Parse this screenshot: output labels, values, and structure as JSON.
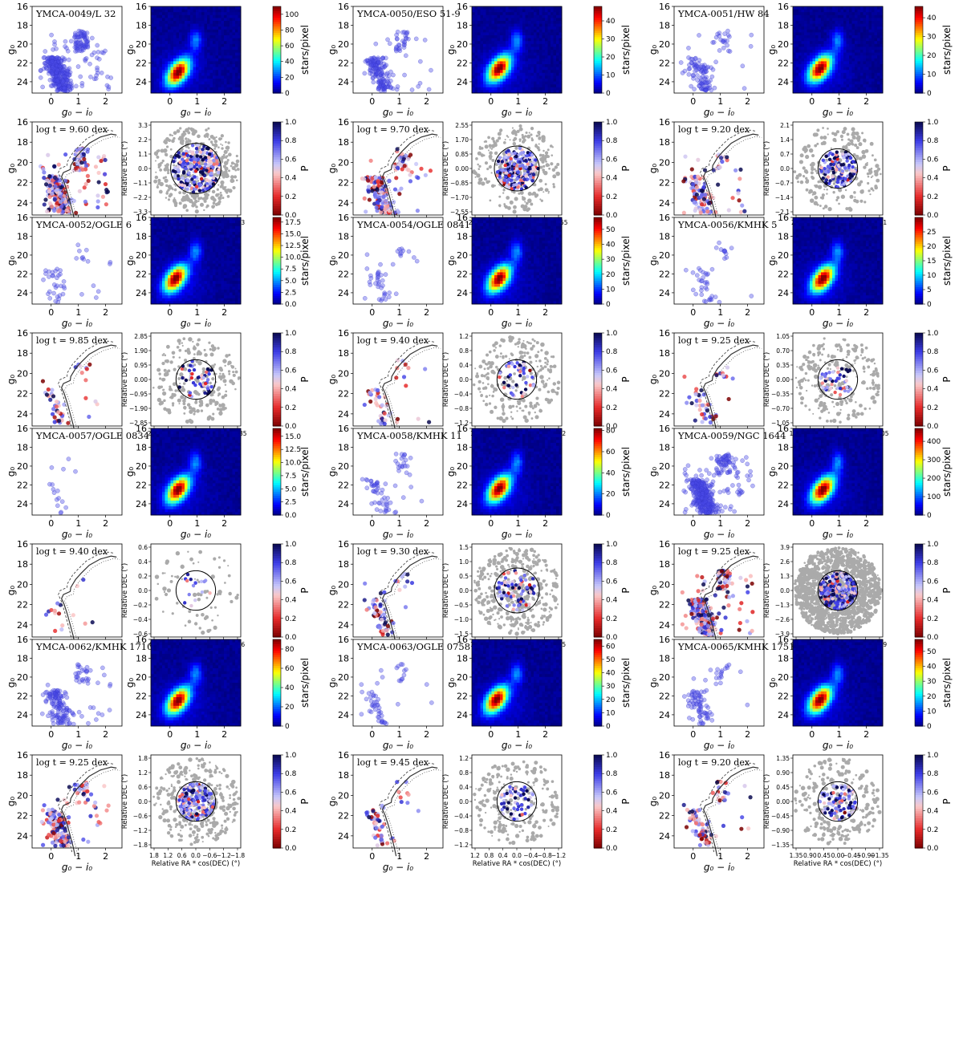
{
  "colors": {
    "cmd_point": "#4a4ae8",
    "field_point": "#aaaaaa",
    "isochrone": "#333333",
    "density_low": "#00007f",
    "density_high": "#ff0000"
  },
  "chart_data": {
    "type": "scatter",
    "layout": "5 cluster rows x 3 columns; each cluster = 2x2 block (CMD, Hess density map, decontaminated CMD with isochrone, sky map colored by membership P)",
    "labels": {
      "x_cmd": "g₀ − i₀",
      "y_cmd": "g₀",
      "cbar_density": "stars/pixel",
      "cbar_prob": "P",
      "x_sky": "Relative RA * cos(DEC) (°)",
      "y_sky": "Relative DEC (°)"
    },
    "cmd_axes": {
      "xlim": [
        -0.7,
        2.6
      ],
      "ylim": [
        25.2,
        16
      ],
      "xticks": [
        "0",
        "1",
        "2"
      ],
      "yticks": [
        "16",
        "18",
        "20",
        "22",
        "24"
      ]
    },
    "prob_cbar_ticks": [
      "0.0",
      "0.2",
      "0.4",
      "0.6",
      "0.8",
      "1.0"
    ],
    "clusters": [
      {
        "name": "YMCA-0049/L 32",
        "age": "log t = 9.60 dex",
        "n": 420,
        "cmax": 110,
        "cbar_ticks": [
          "0",
          "20",
          "40",
          "60",
          "80",
          "100"
        ],
        "hess_peak": [
          0.3,
          23.0
        ],
        "sky_ticks": [
          "3.3",
          "2.2",
          "1.1",
          "0.0",
          "−1.1",
          "−2.2",
          "−3.3"
        ],
        "sky_yticks": [
          "3.3",
          "2.2",
          "1.1",
          "0.0",
          "−1.1",
          "−2.2",
          "−3.3"
        ],
        "circle_r": 0.28,
        "n_field": 380
      },
      {
        "name": "YMCA-0050/ESO 51-9",
        "age": "log t = 9.70 dex",
        "n": 190,
        "cmax": 48,
        "cbar_ticks": [
          "0",
          "10",
          "20",
          "30",
          "40"
        ],
        "hess_peak": [
          0.3,
          22.6
        ],
        "sky_ticks": [
          "2.55",
          "1.70",
          "0.85",
          "0.00",
          "−0.85",
          "−1.70",
          "−2.55"
        ],
        "sky_yticks": [
          "2.55",
          "1.70",
          "0.85",
          "0.00",
          "−0.85",
          "−1.70",
          "−2.55"
        ],
        "circle_r": 0.25,
        "n_field": 260
      },
      {
        "name": "YMCA-0051/HW 84",
        "age": "log t = 9.20 dex",
        "n": 120,
        "cmax": 46,
        "cbar_ticks": [
          "0",
          "10",
          "20",
          "30",
          "40"
        ],
        "hess_peak": [
          0.3,
          22.6
        ],
        "sky_ticks": [
          "2.1",
          "1.4",
          "0.7",
          "0.0",
          "−0.7",
          "−1.4",
          "−2.1"
        ],
        "sky_yticks": [
          "2.1",
          "1.4",
          "0.7",
          "0.0",
          "−0.7",
          "−1.4",
          "−2.1"
        ],
        "circle_r": 0.22,
        "n_field": 230
      },
      {
        "name": "YMCA-0052/OGLE 6",
        "age": "log t = 9.85 dex",
        "n": 45,
        "cmax": 18.5,
        "cbar_ticks": [
          "0.0",
          "2.5",
          "5.0",
          "7.5",
          "10.0",
          "12.5",
          "15.0",
          "17.5"
        ],
        "hess_peak": [
          0.2,
          22.5
        ],
        "sky_ticks": [
          "2.85",
          "1.90",
          "0.95",
          "0.00",
          "−0.95",
          "−1.90",
          "−2.85"
        ],
        "sky_yticks": [
          "2.85",
          "1.90",
          "0.95",
          "0.00",
          "−0.95",
          "−1.90",
          "−2.85"
        ],
        "circle_r": 0.22,
        "n_field": 230
      },
      {
        "name": "YMCA-0054/OGLE 0841",
        "age": "log t = 9.40 dex",
        "n": 45,
        "cmax": 58,
        "cbar_ticks": [
          "0",
          "10",
          "20",
          "30",
          "40",
          "50"
        ],
        "hess_peak": [
          0.3,
          22.5
        ],
        "sky_ticks": [
          "1.2",
          "0.8",
          "0.4",
          "0.0",
          "−0.4",
          "−0.8",
          "−1.2"
        ],
        "sky_yticks": [
          "1.2",
          "0.8",
          "0.4",
          "0.0",
          "−0.4",
          "−0.8",
          "−1.2"
        ],
        "circle_r": 0.22,
        "n_field": 230
      },
      {
        "name": "YMCA-0056/KMHK 5",
        "age": "log t = 9.25 dex",
        "n": 45,
        "cmax": 30,
        "cbar_ticks": [
          "0",
          "5",
          "10",
          "15",
          "20",
          "25"
        ],
        "hess_peak": [
          0.4,
          22.5
        ],
        "sky_ticks": [
          "1.05",
          "0.70",
          "0.35",
          "0.00",
          "−0.35",
          "−0.70",
          "−1.05"
        ],
        "sky_yticks": [
          "1.05",
          "0.70",
          "0.35",
          "0.00",
          "−0.35",
          "−0.70",
          "−1.05"
        ],
        "circle_r": 0.22,
        "n_field": 230
      },
      {
        "name": "YMCA-0057/OGLE 0834",
        "age": "log t = 9.40 dex",
        "n": 16,
        "cmax": 16.5,
        "cbar_ticks": [
          "0.0",
          "2.5",
          "5.0",
          "7.5",
          "10.0",
          "12.5",
          "15.0"
        ],
        "hess_peak": [
          0.3,
          22.5
        ],
        "sky_ticks": [
          "0.6",
          "0.4",
          "0.2",
          "0.0",
          "−0.2",
          "−0.4",
          "−0.6"
        ],
        "sky_yticks": [
          "0.6",
          "0.4",
          "0.2",
          "0.0",
          "−0.2",
          "−0.4",
          "−0.6"
        ],
        "circle_r": 0.22,
        "n_field": 70
      },
      {
        "name": "YMCA-0058/KMHK 11",
        "age": "log t = 9.30 dex",
        "n": 70,
        "cmax": 82,
        "cbar_ticks": [
          "0",
          "20",
          "40",
          "60",
          "80"
        ],
        "hess_peak": [
          0.3,
          22.4
        ],
        "sky_ticks": [
          "1.5",
          "1.0",
          "0.5",
          "0.0",
          "−0.5",
          "−1.0",
          "−1.5"
        ],
        "sky_yticks": [
          "1.5",
          "1.0",
          "0.5",
          "0.0",
          "−0.5",
          "−1.0",
          "−1.5"
        ],
        "circle_r": 0.25,
        "n_field": 380
      },
      {
        "name": "YMCA-0059/NGC 1644",
        "age": "log t = 9.25 dex",
        "n": 700,
        "cmax": 470,
        "cbar_ticks": [
          "0",
          "100",
          "200",
          "300",
          "400"
        ],
        "hess_peak": [
          0.4,
          22.5
        ],
        "sky_ticks": [
          "3.9",
          "2.6",
          "1.3",
          "0.0",
          "−1.3",
          "−2.6",
          "−3.9"
        ],
        "sky_yticks": [
          "3.9",
          "2.6",
          "1.3",
          "0.0",
          "−1.3",
          "−2.6",
          "−3.9"
        ],
        "circle_r": 0.22,
        "n_field": 1500
      },
      {
        "name": "YMCA-0062/KMHK 1710",
        "age": "log t = 9.25 dex",
        "n": 170,
        "cmax": 90,
        "cbar_ticks": [
          "0",
          "20",
          "40",
          "60",
          "80"
        ],
        "hess_peak": [
          0.3,
          22.5
        ],
        "sky_ticks": [
          "1.8",
          "1.2",
          "0.6",
          "0.0",
          "−0.6",
          "−1.2",
          "−1.8"
        ],
        "sky_yticks": [
          "1.8",
          "1.2",
          "0.6",
          "0.0",
          "−0.6",
          "−1.2",
          "−1.8"
        ],
        "circle_r": 0.22,
        "n_field": 330
      },
      {
        "name": "YMCA-0063/OGLE 0758",
        "age": "log t = 9.45 dex",
        "n": 55,
        "cmax": 65,
        "cbar_ticks": [
          "0",
          "10",
          "20",
          "30",
          "40",
          "50",
          "60"
        ],
        "hess_peak": [
          0.2,
          22.4
        ],
        "sky_ticks": [
          "1.2",
          "0.8",
          "0.4",
          "0.0",
          "−0.4",
          "−0.8",
          "−1.2"
        ],
        "sky_yticks": [
          "1.2",
          "0.8",
          "0.4",
          "0.0",
          "−0.4",
          "−0.8",
          "−1.2"
        ],
        "circle_r": 0.22,
        "n_field": 230
      },
      {
        "name": "YMCA-0065/KMHK 1751",
        "age": "log t = 9.20 dex",
        "n": 90,
        "cmax": 58,
        "cbar_ticks": [
          "0",
          "10",
          "20",
          "30",
          "40",
          "50"
        ],
        "hess_peak": [
          0.3,
          22.4
        ],
        "sky_ticks": [
          "1.35",
          "0.90",
          "0.45",
          "0.00",
          "−0.45",
          "−0.90",
          "−1.35"
        ],
        "sky_yticks": [
          "1.35",
          "0.90",
          "0.45",
          "0.00",
          "−0.45",
          "−0.90",
          "−1.35"
        ],
        "circle_r": 0.22,
        "n_field": 250
      }
    ]
  }
}
